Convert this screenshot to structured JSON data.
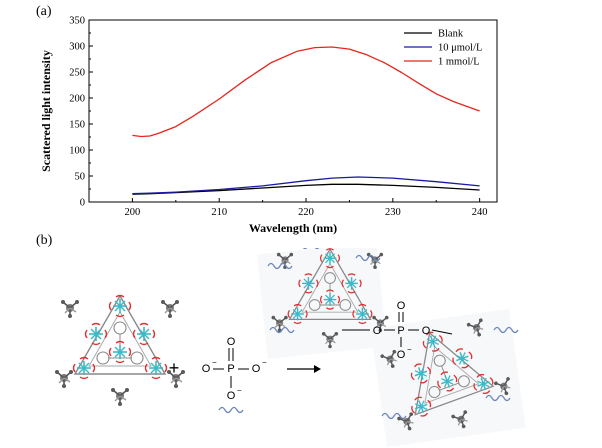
{
  "panel_a_label": "(a)",
  "panel_b_label": "(b)",
  "chart_data": {
    "type": "line",
    "xlabel": "Wavelength (nm)",
    "ylabel": "Scattered light intensity",
    "xlim": [
      195,
      242
    ],
    "ylim": [
      0,
      350
    ],
    "xticks": [
      200,
      210,
      220,
      230,
      240
    ],
    "yticks": [
      0,
      50,
      100,
      150,
      200,
      250,
      300,
      350
    ],
    "legend_position": "top-right",
    "grid": false,
    "series": [
      {
        "name": "Blank",
        "color": "#000000",
        "x": [
          200,
          202,
          205,
          210,
          215,
          220,
          223,
          226,
          230,
          235,
          240
        ],
        "y": [
          15,
          16,
          18,
          22,
          27,
          32,
          34,
          34,
          32,
          28,
          23
        ]
      },
      {
        "name": "10 μmol/L",
        "color": "#1a1aa0",
        "x": [
          200,
          202,
          205,
          210,
          215,
          220,
          223,
          226,
          230,
          235,
          240
        ],
        "y": [
          16,
          17,
          19,
          24,
          31,
          41,
          46,
          48,
          46,
          39,
          31
        ]
      },
      {
        "name": "1 mmol/L",
        "color": "#e8251c",
        "x": [
          200,
          201,
          202,
          203,
          205,
          207,
          210,
          213,
          216,
          219,
          221,
          223,
          225,
          227,
          229,
          231,
          233,
          235,
          237,
          240
        ],
        "y": [
          128,
          126,
          127,
          132,
          145,
          165,
          198,
          235,
          268,
          290,
          297,
          298,
          294,
          283,
          268,
          249,
          228,
          208,
          193,
          175
        ]
      }
    ]
  },
  "scheme": {
    "phosphate_top_O": "O",
    "phosphate_left_O": "O",
    "phosphate_right_O": "O",
    "phosphate_P": "P",
    "charge_minus": "−",
    "plus_sign": "+",
    "arrow": "⟶",
    "bridge_O_left": "O",
    "bridge_O_right": "O",
    "bridge_O_top": "O",
    "bridge_O_bottom": "O",
    "bridge_P": "P"
  }
}
